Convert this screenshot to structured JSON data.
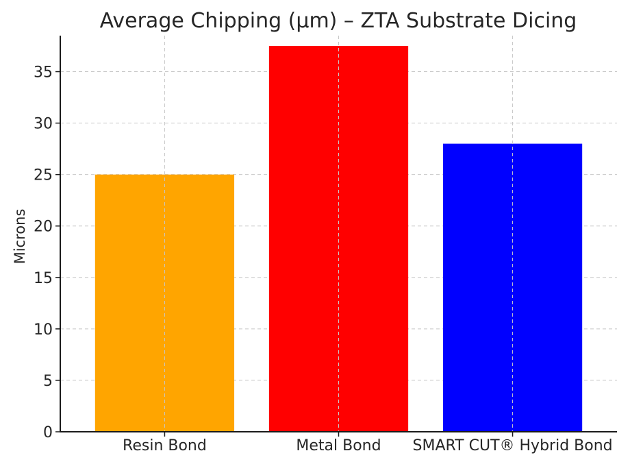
{
  "chart_data": {
    "type": "bar",
    "title": "Average Chipping (µm) – ZTA Substrate Dicing",
    "xlabel": "",
    "ylabel": "Microns",
    "categories": [
      "Resin Bond",
      "Metal Bond",
      "SMART CUT® Hybrid Bond"
    ],
    "values": [
      25,
      37.5,
      28
    ],
    "colors": [
      "#FFA500",
      "#FF0000",
      "#0000FF"
    ],
    "ylim": [
      0,
      38.5
    ],
    "yticks": [
      0,
      5,
      10,
      15,
      20,
      25,
      30,
      35
    ],
    "grid": true
  }
}
